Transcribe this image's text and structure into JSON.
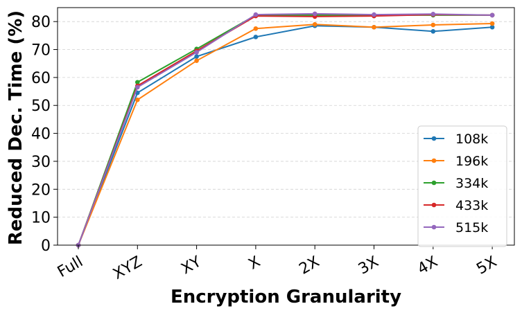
{
  "chart_data": {
    "type": "line",
    "xlabel": "Encryption Granularity",
    "ylabel": "Reduced Dec. Time (%)",
    "categories": [
      "Full",
      "XYZ",
      "XY",
      "X",
      "2X",
      "3X",
      "4X",
      "5X"
    ],
    "ylim": [
      0,
      85
    ],
    "yticks": [
      0,
      10,
      20,
      30,
      40,
      50,
      60,
      70,
      80
    ],
    "grid": "horizontal-dashed",
    "legend_position": "lower-right",
    "series": [
      {
        "name": "108k",
        "color": "#1f77b4",
        "values": [
          0,
          54.5,
          67.5,
          74.5,
          78.5,
          78.0,
          76.5,
          78.0
        ]
      },
      {
        "name": "196k",
        "color": "#ff7f0e",
        "values": [
          0,
          52.0,
          66.0,
          77.5,
          79.0,
          78.0,
          78.8,
          79.3
        ]
      },
      {
        "name": "334k",
        "color": "#2ca02c",
        "values": [
          0,
          58.3,
          70.2,
          82.3,
          82.3,
          82.3,
          82.3,
          82.3
        ]
      },
      {
        "name": "433k",
        "color": "#d62728",
        "values": [
          0,
          57.0,
          69.5,
          82.0,
          81.8,
          82.0,
          82.5,
          82.3
        ]
      },
      {
        "name": "515k",
        "color": "#9467bd",
        "values": [
          0,
          56.5,
          69.0,
          82.5,
          82.8,
          82.5,
          82.7,
          82.3
        ]
      }
    ]
  }
}
